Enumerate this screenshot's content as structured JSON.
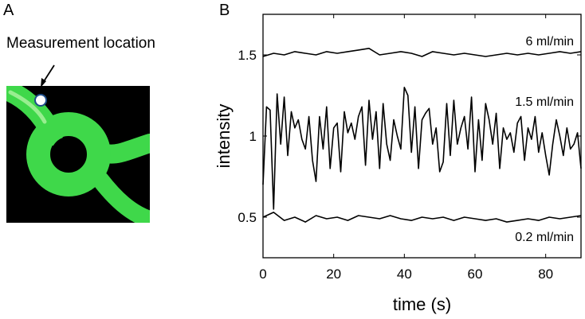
{
  "panel_a": {
    "label": "A",
    "measurement_label": "Measurement location"
  },
  "panel_b": {
    "label": "B"
  },
  "colors": {
    "channel_green": "#3fd84a",
    "background": "#000000",
    "trace": "#000000"
  },
  "chart_data": {
    "type": "line",
    "xlabel": "time (s)",
    "ylabel": "intensity",
    "xlim": [
      0,
      90
    ],
    "ylim": [
      0.25,
      1.75
    ],
    "xticks": [
      0,
      20,
      40,
      60,
      80
    ],
    "yticks": [
      0.5,
      1,
      1.5
    ],
    "ytick_labels": [
      "0.5",
      "1",
      "1.5"
    ],
    "grid": false,
    "series": [
      {
        "name": "6 ml/min",
        "x": [
          0,
          3,
          6,
          9,
          12,
          15,
          18,
          21,
          24,
          27,
          30,
          33,
          36,
          39,
          42,
          45,
          48,
          51,
          54,
          57,
          60,
          63,
          66,
          69,
          72,
          75,
          78,
          81,
          84,
          87,
          90
        ],
        "y": [
          1.49,
          1.51,
          1.5,
          1.52,
          1.51,
          1.5,
          1.52,
          1.51,
          1.52,
          1.53,
          1.54,
          1.5,
          1.51,
          1.52,
          1.51,
          1.49,
          1.52,
          1.51,
          1.5,
          1.51,
          1.5,
          1.49,
          1.5,
          1.51,
          1.5,
          1.51,
          1.5,
          1.51,
          1.52,
          1.51,
          1.52
        ]
      },
      {
        "name": "1.5 ml/min",
        "x": [
          0,
          1,
          2,
          3,
          4,
          5,
          6,
          7,
          8,
          9,
          10,
          11,
          12,
          13,
          14,
          15,
          16,
          17,
          18,
          19,
          20,
          21,
          22,
          23,
          24,
          25,
          26,
          27,
          28,
          29,
          30,
          31,
          32,
          33,
          34,
          35,
          36,
          37,
          38,
          39,
          40,
          41,
          42,
          43,
          44,
          45,
          46,
          47,
          48,
          49,
          50,
          51,
          52,
          53,
          54,
          55,
          56,
          57,
          58,
          59,
          60,
          61,
          62,
          63,
          64,
          65,
          66,
          67,
          68,
          69,
          70,
          71,
          72,
          73,
          74,
          75,
          76,
          77,
          78,
          79,
          80,
          81,
          82,
          83,
          84,
          85,
          86,
          87,
          88,
          89,
          90
        ],
        "y": [
          0.7,
          1.18,
          1.16,
          0.55,
          1.26,
          0.95,
          1.24,
          0.88,
          1.15,
          1.05,
          1.1,
          0.98,
          0.92,
          1.12,
          0.85,
          0.72,
          1.12,
          0.92,
          1.18,
          0.8,
          1.05,
          1.08,
          0.78,
          1.15,
          1.02,
          1.08,
          0.98,
          1.12,
          1.18,
          0.82,
          1.22,
          0.98,
          1.15,
          0.8,
          1.2,
          0.95,
          0.85,
          1.1,
          1.0,
          0.92,
          1.3,
          1.25,
          0.9,
          1.18,
          0.8,
          1.1,
          1.14,
          1.17,
          0.95,
          1.05,
          0.78,
          0.84,
          1.2,
          0.88,
          1.22,
          0.95,
          1.05,
          1.12,
          0.92,
          1.24,
          0.78,
          1.1,
          0.85,
          1.2,
          1.1,
          0.95,
          1.14,
          0.8,
          1.05,
          0.98,
          1.02,
          0.9,
          1.08,
          1.12,
          0.85,
          1.05,
          0.98,
          1.12,
          0.9,
          1.02,
          0.88,
          0.76,
          0.95,
          1.1,
          1.0,
          0.88,
          1.05,
          0.92,
          0.95,
          1.02,
          0.8
        ]
      },
      {
        "name": "0.2 ml/min",
        "x": [
          0,
          3,
          6,
          9,
          12,
          15,
          18,
          21,
          24,
          27,
          30,
          33,
          36,
          39,
          42,
          45,
          48,
          51,
          54,
          57,
          60,
          63,
          66,
          69,
          72,
          75,
          78,
          81,
          84,
          87,
          90
        ],
        "y": [
          0.5,
          0.53,
          0.48,
          0.5,
          0.47,
          0.51,
          0.49,
          0.5,
          0.48,
          0.51,
          0.5,
          0.49,
          0.51,
          0.49,
          0.48,
          0.5,
          0.49,
          0.5,
          0.48,
          0.5,
          0.49,
          0.48,
          0.49,
          0.47,
          0.48,
          0.49,
          0.48,
          0.5,
          0.49,
          0.5,
          0.51
        ]
      }
    ],
    "annotations": [
      "6 ml/min",
      "1.5 ml/min",
      "0.2 ml/min"
    ]
  }
}
